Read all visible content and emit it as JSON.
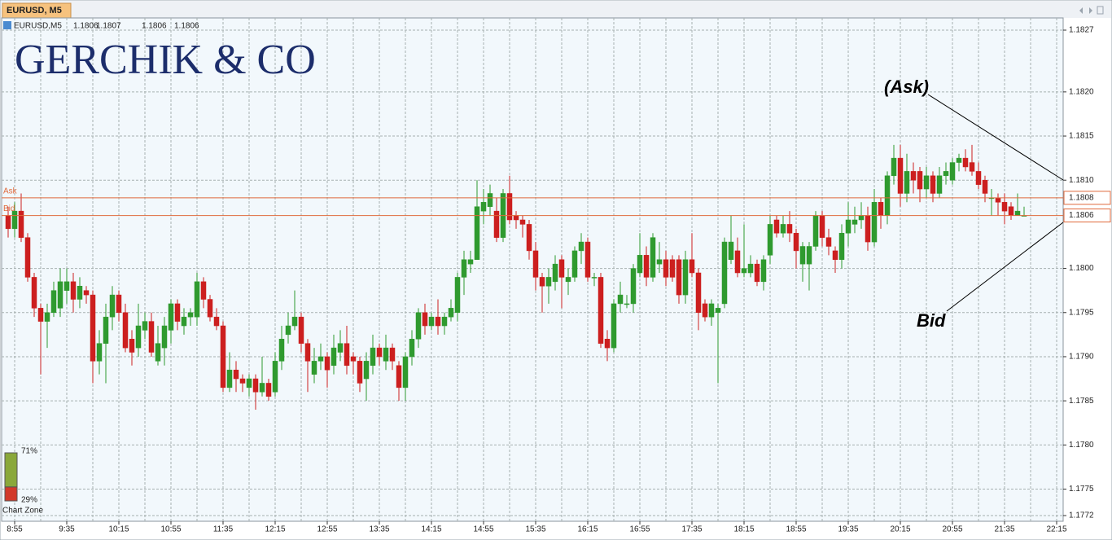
{
  "window": {
    "tab_title": "EURUSD, M5"
  },
  "header": {
    "symbol": "EURUSD,M5",
    "open": 1.1806,
    "high": 1.1807,
    "low": 1.1806,
    "close": 1.1806
  },
  "watermark": "GERCHIK & CO",
  "chart_zone": {
    "label": "Chart Zone",
    "buy": {
      "value": 71,
      "label": "71%"
    },
    "sell": {
      "value": 29,
      "label": "29%"
    },
    "buy_color": "#8aa83a",
    "sell_color": "#d23a2a"
  },
  "chart_data": {
    "type": "candlestick",
    "categories": [
      null,
      "8:55",
      null,
      null,
      null,
      null,
      null,
      null,
      null,
      "9:35",
      null,
      null,
      null,
      null,
      null,
      null,
      null,
      "10:15",
      null,
      null,
      null,
      null,
      null,
      null,
      null,
      "10:55",
      null,
      null,
      null,
      null,
      null,
      null,
      null,
      "11:35",
      null,
      null,
      null,
      null,
      null,
      null,
      null,
      "12:15",
      null,
      null,
      null,
      null,
      null,
      null,
      null,
      "12:55",
      null,
      null,
      null,
      null,
      null,
      null,
      null,
      "13:35",
      null,
      null,
      null,
      null,
      null,
      null,
      null,
      "14:15",
      null,
      null,
      null,
      null,
      null,
      null,
      null,
      "14:55",
      null,
      null,
      null,
      null,
      null,
      null,
      null,
      "15:35",
      null,
      null,
      null,
      null,
      null,
      null,
      null,
      "16:15",
      null,
      null,
      null,
      null,
      null,
      null,
      null,
      "16:55",
      null,
      null,
      null,
      null,
      null,
      null,
      null,
      "17:35",
      null,
      null,
      null,
      null,
      null,
      null,
      null,
      "18:15",
      null,
      null,
      null,
      null,
      null,
      null,
      null,
      "18:55",
      null,
      null,
      null,
      null,
      null,
      null,
      null,
      "19:35",
      null,
      null,
      null,
      null,
      null,
      null,
      null,
      "20:15",
      null,
      null,
      null,
      null,
      null,
      null,
      null,
      "20:55",
      null,
      null,
      null,
      null,
      null,
      null,
      null,
      "21:35",
      null,
      null,
      null,
      null,
      null,
      null,
      null,
      "22:15"
    ],
    "open": [
      1.1806,
      1.18045,
      1.18065,
      1.18035,
      1.1799,
      1.17955,
      1.1794,
      1.1795,
      1.17955,
      1.17975,
      1.17985,
      1.17965,
      1.17975,
      1.1797,
      1.17895,
      1.17915,
      1.17945,
      1.1797,
      1.1795,
      1.1792,
      1.1791,
      1.1793,
      1.1794,
      1.17895,
      1.1791,
      1.1793,
      1.1796,
      1.17935,
      1.17945,
      1.17945,
      1.17985,
      1.17965,
      1.17945,
      1.17935,
      1.17865,
      1.17885,
      1.17875,
      1.17865,
      1.17875,
      1.1786,
      1.1787,
      1.1786,
      1.17895,
      1.17925,
      1.17935,
      1.17945,
      1.17915,
      1.1788,
      1.17895,
      1.179,
      1.1789,
      1.17905,
      1.17915,
      1.179,
      1.17895,
      1.17875,
      1.1789,
      1.1791,
      1.17895,
      1.1791,
      1.1789,
      1.17865,
      1.179,
      1.1792,
      1.1795,
      1.17935,
      1.17945,
      1.17935,
      1.17945,
      1.1795,
      1.1799,
      1.18005,
      1.1801,
      1.18065,
      1.1807,
      1.18065,
      1.18035,
      1.18085,
      1.1806,
      1.18055,
      1.1805,
      1.1802,
      1.1799,
      1.1798,
      1.17985,
      1.1801,
      1.17985,
      1.1799,
      1.1802,
      1.1803,
      1.1799,
      1.1799,
      1.1792,
      1.1791,
      1.1796,
      1.1796,
      1.1796,
      1.17995,
      1.18015,
      1.1799,
      1.18005,
      1.1801,
      1.1801,
      1.1801,
      1.1797,
      1.1801,
      1.17995,
      1.1796,
      1.17945,
      1.1795,
      1.1796,
      1.1801,
      1.1802,
      1.17995,
      1.17995,
      1.18005,
      1.17985,
      1.18015,
      1.18055,
      1.1804,
      1.1805,
      1.1804,
      1.18005,
      1.18005,
      1.18025,
      1.1806,
      1.18035,
      1.1802,
      1.1801,
      1.1804,
      1.1805,
      1.18055,
      1.1806,
      1.1803,
      1.18075,
      1.1806,
      1.18105,
      1.18125,
      1.18085,
      1.1811,
      1.1811,
      1.1809,
      1.18105,
      1.18085,
      1.18105,
      1.181,
      1.1812,
      1.18125,
      1.1812,
      1.1811,
      1.181,
      1.1808,
      1.1808,
      1.18075,
      1.1807,
      1.1806,
      1.1806,
      null,
      null,
      null,
      null,
      null
    ],
    "high": [
      1.1807,
      1.18075,
      1.18085,
      1.1804,
      1.17995,
      1.1796,
      1.1796,
      1.17985,
      1.18,
      1.18,
      1.17995,
      1.1799,
      1.1798,
      1.17975,
      1.1793,
      1.1796,
      1.1798,
      1.17975,
      1.1796,
      1.1793,
      1.1796,
      1.1795,
      1.1795,
      1.17935,
      1.17945,
      1.17965,
      1.17965,
      1.17955,
      1.17955,
      1.17995,
      1.1799,
      1.1797,
      1.17955,
      1.1794,
      1.17905,
      1.17895,
      1.1788,
      1.1788,
      1.1788,
      1.179,
      1.17875,
      1.17905,
      1.17935,
      1.1795,
      1.17975,
      1.1795,
      1.1792,
      1.1791,
      1.17915,
      1.17905,
      1.17925,
      1.1793,
      1.17935,
      1.17905,
      1.179,
      1.17905,
      1.17925,
      1.17915,
      1.17925,
      1.17915,
      1.17895,
      1.17905,
      1.1793,
      1.17955,
      1.1796,
      1.1795,
      1.17965,
      1.1795,
      1.17965,
      1.17995,
      1.1802,
      1.1802,
      1.181,
      1.1809,
      1.18095,
      1.1808,
      1.1809,
      1.18105,
      1.18065,
      1.1806,
      1.18055,
      1.1803,
      1.17995,
      1.18,
      1.18015,
      1.18015,
      1.18,
      1.18025,
      1.1804,
      1.18035,
      1.17995,
      1.17995,
      1.1793,
      1.17965,
      1.17985,
      1.1797,
      1.18005,
      1.1804,
      1.18025,
      1.1804,
      1.1803,
      1.1802,
      1.18015,
      1.18015,
      1.1802,
      1.1804,
      1.18,
      1.17965,
      1.17965,
      1.1796,
      1.18035,
      1.1806,
      1.18035,
      1.1805,
      1.18015,
      1.1801,
      1.18015,
      1.1806,
      1.1806,
      1.1806,
      1.18065,
      1.18045,
      1.1803,
      1.1803,
      1.18065,
      1.18065,
      1.18045,
      1.18025,
      1.1805,
      1.18075,
      1.1807,
      1.18075,
      1.1807,
      1.1809,
      1.1808,
      1.1811,
      1.1814,
      1.1814,
      1.1813,
      1.1812,
      1.18115,
      1.18115,
      1.1811,
      1.18115,
      1.1812,
      1.18125,
      1.1813,
      1.18135,
      1.1814,
      1.1812,
      1.18105,
      1.1809,
      1.18085,
      1.18085,
      1.18075,
      1.18085,
      1.1807,
      null,
      null,
      null,
      null,
      null
    ],
    "low": [
      1.18035,
      1.18035,
      1.1803,
      1.17985,
      1.17945,
      1.1788,
      1.1791,
      1.17945,
      1.17945,
      1.1796,
      1.1795,
      1.17955,
      1.1796,
      1.1787,
      1.1788,
      1.1787,
      1.1793,
      1.1794,
      1.17905,
      1.1789,
      1.179,
      1.1792,
      1.179,
      1.1789,
      1.1789,
      1.17915,
      1.1793,
      1.17925,
      1.17935,
      1.17935,
      1.17955,
      1.1794,
      1.1793,
      1.1786,
      1.1786,
      1.1786,
      1.1786,
      1.17855,
      1.1784,
      1.17855,
      1.1785,
      1.17855,
      1.17885,
      1.17915,
      1.1793,
      1.17905,
      1.1786,
      1.1787,
      1.17885,
      1.17865,
      1.1788,
      1.17895,
      1.1788,
      1.1788,
      1.1786,
      1.1785,
      1.1788,
      1.1789,
      1.17885,
      1.17885,
      1.1785,
      1.1785,
      1.1789,
      1.1791,
      1.17925,
      1.1793,
      1.17925,
      1.17925,
      1.1794,
      1.1794,
      1.1797,
      1.17995,
      1.1801,
      1.1805,
      1.1806,
      1.1803,
      1.1803,
      1.1805,
      1.18045,
      1.18035,
      1.1801,
      1.17975,
      1.1795,
      1.1796,
      1.17975,
      1.17955,
      1.1797,
      1.17985,
      1.18005,
      1.17985,
      1.1798,
      1.1791,
      1.17895,
      1.17905,
      1.1795,
      1.17955,
      1.1795,
      1.1799,
      1.1798,
      1.17985,
      1.17995,
      1.1798,
      1.17985,
      1.1796,
      1.1796,
      1.1799,
      1.1793,
      1.1794,
      1.17935,
      1.1787,
      1.17955,
      1.18005,
      1.1799,
      1.1799,
      1.1799,
      1.1798,
      1.17975,
      1.18005,
      1.18035,
      1.18035,
      1.1803,
      1.18,
      1.17985,
      1.17975,
      1.1802,
      1.18025,
      1.18015,
      1.17995,
      1.18,
      1.18025,
      1.1804,
      1.18045,
      1.1802,
      1.18025,
      1.18045,
      1.1805,
      1.18095,
      1.1807,
      1.18075,
      1.18085,
      1.18075,
      1.1808,
      1.18075,
      1.1808,
      1.18095,
      1.18095,
      1.1811,
      1.1811,
      1.18105,
      1.1809,
      1.18075,
      1.1806,
      1.1806,
      1.1805,
      1.18055,
      1.1806,
      1.1806,
      null,
      null,
      null,
      null,
      null
    ],
    "close": [
      1.18045,
      1.18065,
      1.18035,
      1.1799,
      1.17955,
      1.1794,
      1.1795,
      1.17975,
      1.17985,
      1.17985,
      1.17965,
      1.1798,
      1.1797,
      1.17895,
      1.17915,
      1.17945,
      1.1797,
      1.1795,
      1.1791,
      1.17905,
      1.17935,
      1.1794,
      1.17905,
      1.17915,
      1.17935,
      1.1796,
      1.1794,
      1.17945,
      1.1795,
      1.17985,
      1.17965,
      1.17945,
      1.17935,
      1.17865,
      1.17885,
      1.17875,
      1.1787,
      1.17875,
      1.1786,
      1.1787,
      1.17855,
      1.17895,
      1.1792,
      1.17935,
      1.17945,
      1.17915,
      1.17895,
      1.17895,
      1.179,
      1.17885,
      1.1791,
      1.17915,
      1.1789,
      1.17895,
      1.1787,
      1.17895,
      1.1791,
      1.179,
      1.1791,
      1.17895,
      1.17865,
      1.179,
      1.1792,
      1.1795,
      1.17935,
      1.17945,
      1.17935,
      1.17945,
      1.17955,
      1.1799,
      1.1801,
      1.1801,
      1.1807,
      1.18075,
      1.18085,
      1.18035,
      1.18085,
      1.18055,
      1.18055,
      1.1805,
      1.1802,
      1.1799,
      1.1798,
      1.1799,
      1.18005,
      1.1799,
      1.1799,
      1.1802,
      1.1803,
      1.1799,
      1.1799,
      1.17915,
      1.1791,
      1.1796,
      1.1797,
      1.1796,
      1.18,
      1.18015,
      1.1799,
      1.18035,
      1.1801,
      1.1799,
      1.1799,
      1.1797,
      1.1801,
      1.17995,
      1.1795,
      1.17945,
      1.1796,
      1.17955,
      1.1803,
      1.1803,
      1.17995,
      1.18,
      1.18005,
      1.17985,
      1.1801,
      1.1805,
      1.1804,
      1.1805,
      1.1804,
      1.1802,
      1.18025,
      1.18025,
      1.1806,
      1.18035,
      1.18025,
      1.1801,
      1.1804,
      1.18055,
      1.18055,
      1.1806,
      1.1803,
      1.18075,
      1.1806,
      1.18105,
      1.18125,
      1.18085,
      1.1811,
      1.181,
      1.1809,
      1.18105,
      1.18085,
      1.18105,
      1.1811,
      1.1812,
      1.18125,
      1.18115,
      1.1811,
      1.18095,
      1.18085,
      1.1808,
      1.18075,
      1.18065,
      1.1806,
      1.18065,
      1.1806,
      null,
      null,
      null,
      null,
      null
    ],
    "up_color": "#2f9a2f",
    "down_color": "#cc1f1f",
    "ylim": [
      1.1772,
      1.1827
    ],
    "yticks": [
      1.1772,
      1.1775,
      {
        "value": 1.178,
        "label": "1.1780"
      },
      1.1785,
      {
        "value": 1.179,
        "label": "1.1790"
      },
      1.1795,
      {
        "value": 1.18,
        "label": "1.1800"
      },
      {
        "value": 1.181,
        "label": "1.1810"
      },
      1.1815,
      {
        "value": 1.182,
        "label": "1.1820"
      },
      1.1827
    ],
    "grid": true,
    "ask": 1.1808,
    "bid": 1.1806,
    "ask_label": "Ask",
    "bid_label": "Bid",
    "line_color": "#e06a3c",
    "annotations": [
      "(Ask)",
      "Bid"
    ]
  }
}
